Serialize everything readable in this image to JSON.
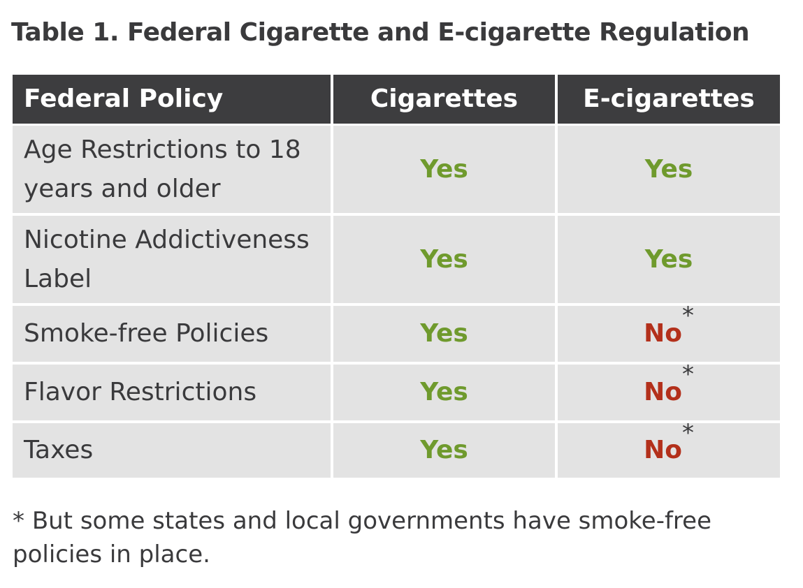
{
  "title": "Table 1. Federal Cigarette and E-cigarette Regulation",
  "table": {
    "header": [
      "Federal Policy",
      "Cigarettes",
      "E-cigarettes"
    ],
    "rows": [
      [
        {
          "text": "Age Restrictions to 18 years and older"
        },
        {
          "text": "Yes",
          "color": "#6f9a2d"
        },
        {
          "text": "Yes",
          "color": "#6f9a2d"
        }
      ],
      [
        {
          "text": "Nicotine Addictiveness Label"
        },
        {
          "text": "Yes",
          "color": "#6f9a2d"
        },
        {
          "text": "Yes",
          "color": "#6f9a2d"
        }
      ],
      [
        {
          "text": "Smoke-free Policies"
        },
        {
          "text": "Yes",
          "color": "#6f9a2d"
        },
        {
          "text": "No",
          "color": "#b3301b",
          "note": "*"
        }
      ],
      [
        {
          "text": "Flavor Restrictions"
        },
        {
          "text": "Yes",
          "color": "#6f9a2d"
        },
        {
          "text": "No",
          "color": "#b3301b",
          "note": "*"
        }
      ],
      [
        {
          "text": "Taxes"
        },
        {
          "text": "Yes",
          "color": "#6f9a2d"
        },
        {
          "text": "No",
          "color": "#b3301b",
          "note": "*"
        }
      ]
    ]
  },
  "footnote": {
    "mark": "*",
    "text": "But some states and local governments have smoke-free policies in place."
  }
}
